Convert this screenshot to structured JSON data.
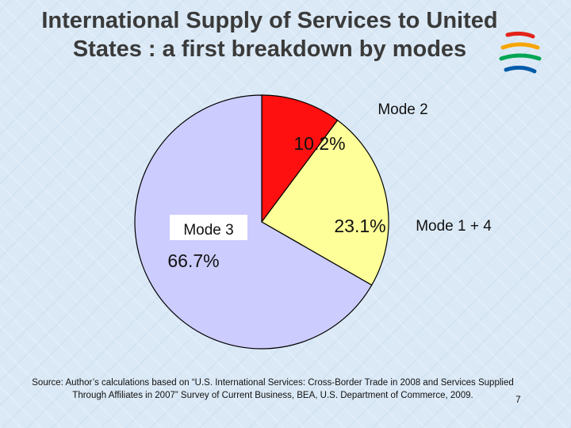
{
  "title": {
    "line1": "International Supply of Services to United",
    "line2": "States : a first breakdown by modes"
  },
  "chart_data": {
    "type": "pie",
    "title": "International Supply of Services to United States : a first breakdown by modes",
    "slices": [
      {
        "label": "Mode 2",
        "value": 10.2,
        "value_label": "10.2%",
        "color": "#ff1010"
      },
      {
        "label": "Mode 1 + 4",
        "value": 23.1,
        "value_label": "23.1%",
        "color": "#ffff99"
      },
      {
        "label": "Mode 3",
        "value": 66.7,
        "value_label": "66.7%",
        "color": "#ccccff"
      }
    ],
    "start": "12 o'clock, clockwise"
  },
  "source": {
    "line1": "Source: Author’s calculations based on “U.S. International Services: Cross-Border Trade in 2008 and Services Supplied",
    "line2": "Through Affiliates in 2007” Survey of Current Business, BEA, U.S. Department of Commerce, 2009."
  },
  "page_number": "7",
  "logo": {
    "icon": "wto-logo-icon",
    "colors": [
      "#e2231a",
      "#f7a600",
      "#00a651",
      "#005baa"
    ]
  }
}
